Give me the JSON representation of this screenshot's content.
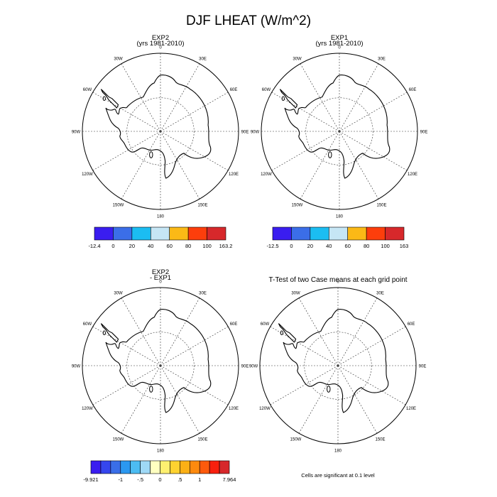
{
  "title": "DJF LHEAT (W/m^2)",
  "longitude_labels": [
    "0",
    "30E",
    "60E",
    "90E",
    "120E",
    "150E",
    "180",
    "150W",
    "120W",
    "90W",
    "60W",
    "30W"
  ],
  "panels": [
    {
      "id": "exp2",
      "title_lines": [
        "EXP2",
        "(yrs 1981-2010)"
      ],
      "colorbar": {
        "labels": [
          "-12.4",
          "0",
          "20",
          "40",
          "60",
          "80",
          "100",
          "163.2"
        ],
        "colors": [
          "#3a1df0",
          "#3b6ee8",
          "#1bbdf2",
          "#c6e6f5",
          "#fbb916",
          "#fd3e0c",
          "#d7282b"
        ]
      }
    },
    {
      "id": "exp1",
      "title_lines": [
        "EXP1",
        "(yrs 1981-2010)"
      ],
      "colorbar": {
        "labels": [
          "-12.5",
          "0",
          "20",
          "40",
          "60",
          "80",
          "100",
          "163"
        ],
        "colors": [
          "#3a1df0",
          "#3b6ee8",
          "#1bbdf2",
          "#c6e6f5",
          "#fbb916",
          "#fd3e0c",
          "#d7282b"
        ]
      }
    },
    {
      "id": "diff",
      "title_lines": [
        "EXP2",
        "- EXP1"
      ],
      "colorbar": {
        "labels": [
          "-9.921",
          "-1",
          "-.5",
          "0",
          ".5",
          "1",
          "7.964"
        ],
        "colors": [
          "#3a1df0",
          "#3546ee",
          "#3a6ee8",
          "#2b98f0",
          "#4cbcf2",
          "#9fd9f6",
          "#ffffc0",
          "#fff070",
          "#fed230",
          "#fbb016",
          "#fd8a0e",
          "#fd5a0c",
          "#f8200e",
          "#d7282b"
        ]
      }
    },
    {
      "id": "ttest",
      "title_lines": [
        "T-Test of two Case means at each grid point"
      ],
      "footnote": "Cells are significant at 0.1 level"
    }
  ]
}
